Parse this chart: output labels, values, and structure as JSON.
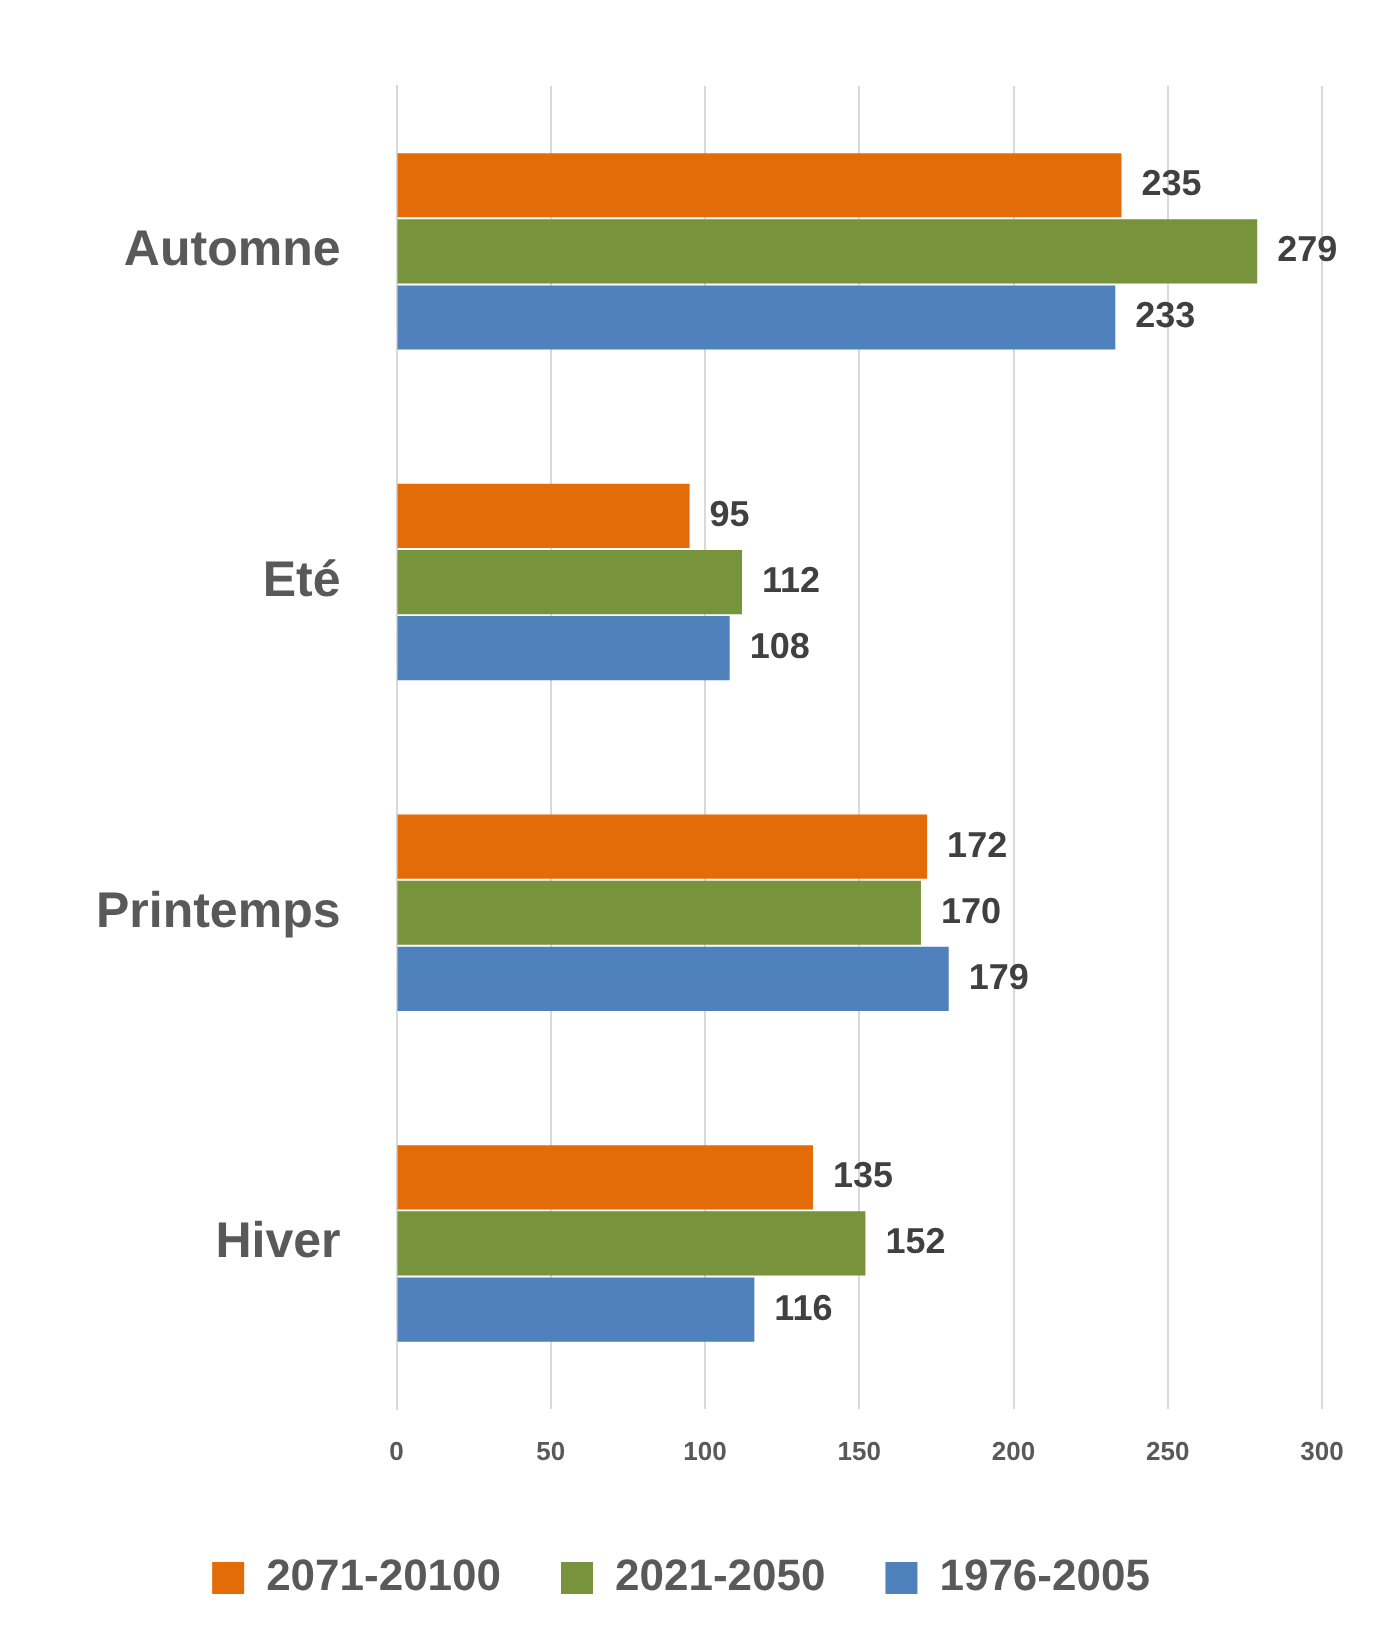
{
  "chart_data": {
    "type": "bar",
    "orientation": "horizontal",
    "categories": [
      "Automne",
      "Eté",
      "Printemps",
      "Hiver"
    ],
    "series": [
      {
        "name": "2071-20100",
        "color": "#e36c09",
        "values": [
          235,
          95,
          172,
          135
        ]
      },
      {
        "name": "2021-2050",
        "color": "#77933c",
        "values": [
          279,
          112,
          170,
          152
        ]
      },
      {
        "name": "1976-2005",
        "color": "#4f81bd",
        "values": [
          233,
          108,
          179,
          116
        ]
      }
    ],
    "xlim": [
      0,
      300
    ],
    "xticks": [
      0,
      50,
      100,
      150,
      200,
      250,
      300
    ],
    "grid": "x",
    "legend": "bottom",
    "data_labels": true
  }
}
